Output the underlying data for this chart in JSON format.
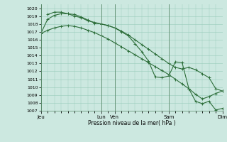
{
  "bg_color": "#cce8e0",
  "grid_color": "#99ccbb",
  "line_color": "#2d6e3a",
  "ylim": [
    1007,
    1020.5
  ],
  "yticks": [
    1007,
    1008,
    1009,
    1010,
    1011,
    1012,
    1013,
    1014,
    1015,
    1016,
    1017,
    1018,
    1019,
    1020
  ],
  "xlabel": "Pression niveau de la mer( hPa )",
  "xtick_labels": [
    "Jeu",
    "Lun",
    "Ven",
    "Sam",
    "Dim"
  ],
  "xtick_positions": [
    0,
    9,
    11,
    19,
    27
  ],
  "xlim": [
    0,
    27
  ],
  "line1_x": [
    0,
    1,
    2,
    3,
    4,
    5,
    6,
    7,
    8,
    9,
    10,
    11,
    12,
    13,
    14,
    15,
    16,
    17,
    18,
    19,
    20,
    21,
    22,
    23,
    24,
    25,
    26,
    27
  ],
  "line1_y": [
    1016.8,
    1017.2,
    1017.5,
    1017.7,
    1017.8,
    1017.7,
    1017.5,
    1017.2,
    1016.9,
    1016.5,
    1016.1,
    1015.6,
    1015.1,
    1014.6,
    1014.1,
    1013.6,
    1013.1,
    1012.6,
    1012.1,
    1011.6,
    1011.0,
    1010.4,
    1009.8,
    1009.1,
    1008.5,
    1008.8,
    1009.2,
    1009.5
  ],
  "line2_x": [
    0,
    1,
    2,
    3,
    4,
    5,
    6,
    7,
    8,
    9,
    10,
    11,
    12,
    13,
    14,
    15,
    16,
    17,
    18,
    19,
    20,
    21,
    22,
    23,
    24,
    25,
    26,
    27
  ],
  "line2_y": [
    1016.8,
    1018.6,
    1019.1,
    1019.3,
    1019.3,
    1019.2,
    1018.9,
    1018.5,
    1018.1,
    1018.0,
    1017.8,
    1017.5,
    1017.1,
    1016.6,
    1016.0,
    1015.4,
    1014.8,
    1014.2,
    1013.6,
    1013.0,
    1012.5,
    1012.3,
    1012.5,
    1012.2,
    1011.7,
    1011.2,
    1009.8,
    1009.5
  ],
  "line3_x": [
    1,
    2,
    3,
    4,
    5,
    6,
    7,
    8,
    9,
    10,
    11,
    12,
    13,
    14,
    15,
    16,
    17,
    18,
    19,
    20,
    21,
    22,
    23,
    24,
    25,
    26,
    27
  ],
  "line3_y": [
    1019.2,
    1019.5,
    1019.5,
    1019.3,
    1019.0,
    1018.8,
    1018.4,
    1018.2,
    1018.0,
    1017.8,
    1017.5,
    1017.0,
    1016.5,
    1015.5,
    1014.5,
    1013.3,
    1011.3,
    1011.2,
    1011.4,
    1013.2,
    1013.1,
    1009.8,
    1008.2,
    1007.9,
    1008.2,
    1007.1,
    1007.3
  ]
}
